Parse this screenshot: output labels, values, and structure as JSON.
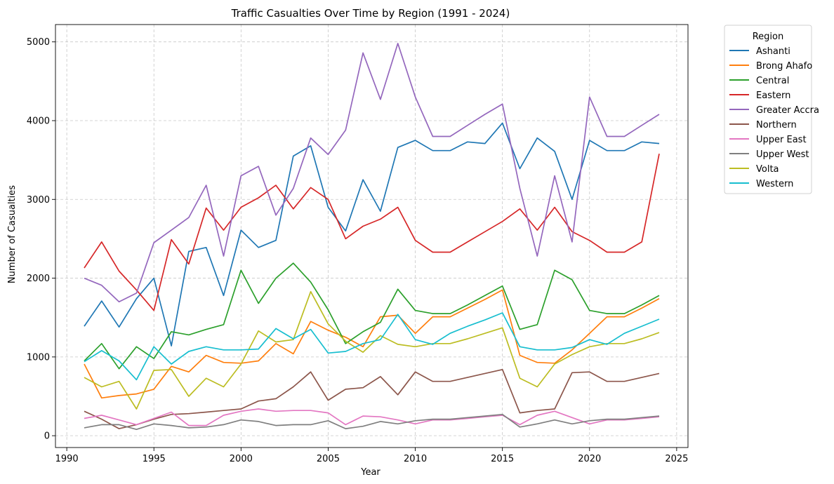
{
  "chart_data": {
    "type": "line",
    "title": "Traffic Casualties Over Time by Region (1991 - 2024)",
    "xlabel": "Year",
    "ylabel": "Number of Casualties",
    "xlim": [
      1989.35,
      2025.65
    ],
    "ylim": [
      -150,
      5220
    ],
    "xticks": [
      1990,
      1995,
      2000,
      2005,
      2010,
      2015,
      2020,
      2025
    ],
    "yticks": [
      0,
      1000,
      2000,
      3000,
      4000,
      5000
    ],
    "grid": true,
    "legend_title": "Region",
    "legend_placement": "outside-top-right",
    "x": [
      1991,
      1992,
      1993,
      1994,
      1995,
      1996,
      1997,
      1998,
      1999,
      2000,
      2001,
      2002,
      2003,
      2004,
      2005,
      2006,
      2007,
      2008,
      2009,
      2010,
      2011,
      2012,
      2013,
      2014,
      2015,
      2016,
      2017,
      2018,
      2019,
      2020,
      2021,
      2022,
      2023,
      2024
    ],
    "series": [
      {
        "name": "Ashanti",
        "color": "#1f77b4",
        "values": [
          1390,
          1710,
          1380,
          1740,
          2000,
          1140,
          2340,
          2390,
          1780,
          2610,
          2390,
          2480,
          3550,
          3680,
          2900,
          2600,
          3250,
          2850,
          3660,
          3750,
          3620,
          3620,
          3730,
          3710,
          3970,
          3390,
          3780,
          3610,
          3000,
          3750,
          3620,
          3620,
          3730,
          3710
        ]
      },
      {
        "name": "Brong Ahafo",
        "color": "#ff7f0e",
        "values": [
          910,
          480,
          510,
          530,
          590,
          880,
          810,
          1020,
          930,
          920,
          950,
          1170,
          1040,
          1450,
          1340,
          1250,
          1130,
          1510,
          1530,
          1300,
          1510,
          1510,
          1620,
          1730,
          1850,
          1020,
          930,
          920,
          1090,
          1300,
          1510,
          1510,
          1620,
          1740
        ]
      },
      {
        "name": "Central",
        "color": "#2ca02c",
        "values": [
          950,
          1170,
          850,
          1130,
          980,
          1320,
          1280,
          1350,
          1410,
          2100,
          1680,
          2000,
          2190,
          1950,
          1600,
          1170,
          1320,
          1440,
          1860,
          1590,
          1550,
          1550,
          1660,
          1780,
          1900,
          1350,
          1410,
          2100,
          1980,
          1590,
          1550,
          1550,
          1660,
          1780
        ]
      },
      {
        "name": "Eastern",
        "color": "#d62728",
        "values": [
          2130,
          2460,
          2090,
          1850,
          1590,
          2490,
          2180,
          2890,
          2610,
          2900,
          3020,
          3180,
          2880,
          3150,
          3000,
          2500,
          2660,
          2750,
          2900,
          2480,
          2330,
          2330,
          2460,
          2590,
          2720,
          2880,
          2610,
          2900,
          2590,
          2480,
          2330,
          2330,
          2460,
          3580
        ]
      },
      {
        "name": "Greater Accra",
        "color": "#9467bd",
        "values": [
          2000,
          1910,
          1700,
          1810,
          2450,
          2610,
          2770,
          3180,
          2280,
          3300,
          3420,
          2800,
          3140,
          3780,
          3570,
          3880,
          4860,
          4270,
          4980,
          4300,
          3800,
          3800,
          3940,
          4080,
          4210,
          3140,
          2280,
          3300,
          2460,
          4300,
          3800,
          3800,
          3940,
          4080
        ]
      },
      {
        "name": "Northern",
        "color": "#8c564b",
        "values": [
          310,
          210,
          90,
          140,
          210,
          270,
          280,
          300,
          320,
          340,
          440,
          470,
          620,
          810,
          450,
          590,
          610,
          750,
          520,
          810,
          690,
          690,
          740,
          790,
          840,
          290,
          320,
          340,
          800,
          810,
          690,
          690,
          740,
          790
        ]
      },
      {
        "name": "Upper East",
        "color": "#e377c2",
        "values": [
          220,
          260,
          200,
          140,
          220,
          300,
          130,
          130,
          260,
          310,
          340,
          310,
          320,
          320,
          290,
          140,
          250,
          240,
          200,
          150,
          200,
          200,
          220,
          240,
          260,
          140,
          260,
          310,
          230,
          150,
          200,
          200,
          220,
          240
        ]
      },
      {
        "name": "Upper West",
        "color": "#7f7f7f",
        "values": [
          100,
          140,
          140,
          80,
          150,
          130,
          100,
          110,
          140,
          200,
          180,
          130,
          140,
          140,
          190,
          90,
          120,
          180,
          150,
          190,
          210,
          210,
          230,
          250,
          270,
          110,
          150,
          200,
          150,
          190,
          210,
          210,
          230,
          250
        ]
      },
      {
        "name": "Volta",
        "color": "#bcbd22",
        "values": [
          740,
          620,
          690,
          340,
          830,
          840,
          500,
          730,
          620,
          910,
          1330,
          1190,
          1220,
          1830,
          1420,
          1200,
          1060,
          1270,
          1160,
          1130,
          1170,
          1170,
          1230,
          1300,
          1370,
          730,
          620,
          910,
          1030,
          1130,
          1170,
          1170,
          1230,
          1310
        ]
      },
      {
        "name": "Western",
        "color": "#17becf",
        "values": [
          940,
          1080,
          950,
          710,
          1130,
          910,
          1070,
          1130,
          1090,
          1090,
          1100,
          1360,
          1230,
          1350,
          1050,
          1070,
          1170,
          1220,
          1540,
          1220,
          1160,
          1300,
          1390,
          1470,
          1560,
          1130,
          1090,
          1090,
          1120,
          1220,
          1160,
          1300,
          1390,
          1480
        ]
      }
    ]
  }
}
